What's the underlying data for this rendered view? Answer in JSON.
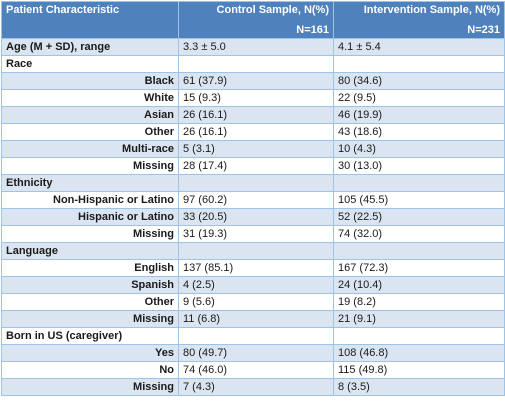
{
  "header": {
    "characteristic": "Patient Characteristic",
    "control_label": "Control Sample, N(%)",
    "control_n": "N=161",
    "intervention_label": "Intervention Sample, N(%)",
    "intervention_n": "N=231"
  },
  "rows": [
    {
      "label": "Age (M + SD), range",
      "type": "category",
      "control": "3.3 ± 5.0",
      "intervention": "4.1 ± 5.4"
    },
    {
      "label": "Race",
      "type": "category",
      "control": "",
      "intervention": ""
    },
    {
      "label": "Black",
      "type": "sub",
      "control": "61 (37.9)",
      "intervention": "80 (34.6)"
    },
    {
      "label": "White",
      "type": "sub",
      "control": "15 (9.3)",
      "intervention": "22 (9.5)"
    },
    {
      "label": "Asian",
      "type": "sub",
      "control": "26 (16.1)",
      "intervention": "46 (19.9)"
    },
    {
      "label": "Other",
      "type": "sub",
      "control": "26 (16.1)",
      "intervention": "43 (18.6)"
    },
    {
      "label": "Multi-race",
      "type": "sub",
      "control": "5 (3.1)",
      "intervention": "10 (4.3)"
    },
    {
      "label": "Missing",
      "type": "sub",
      "control": "28 (17.4)",
      "intervention": "30 (13.0)"
    },
    {
      "label": "Ethnicity",
      "type": "category",
      "control": "",
      "intervention": ""
    },
    {
      "label": "Non-Hispanic or Latino",
      "type": "sub",
      "control": "97 (60.2)",
      "intervention": "105 (45.5)"
    },
    {
      "label": "Hispanic or Latino",
      "type": "sub",
      "control": "33 (20.5)",
      "intervention": "52 (22.5)"
    },
    {
      "label": "Missing",
      "type": "sub",
      "control": "31 (19.3)",
      "intervention": "74 (32.0)"
    },
    {
      "label": "Language",
      "type": "category",
      "control": "",
      "intervention": ""
    },
    {
      "label": "English",
      "type": "sub",
      "control": "137 (85.1)",
      "intervention": "167 (72.3)"
    },
    {
      "label": "Spanish",
      "type": "sub",
      "control": "4 (2.5)",
      "intervention": "24 (10.4)"
    },
    {
      "label": "Other",
      "type": "sub",
      "control": "9 (5.6)",
      "intervention": "19 (8.2)"
    },
    {
      "label": "Missing",
      "type": "sub",
      "control": "11 (6.8)",
      "intervention": "21 (9.1)"
    },
    {
      "label": "Born in US (caregiver)",
      "type": "category",
      "control": "",
      "intervention": ""
    },
    {
      "label": "Yes",
      "type": "sub",
      "control": "80 (49.7)",
      "intervention": "108 (46.8)"
    },
    {
      "label": "No",
      "type": "sub",
      "control": "74 (46.0)",
      "intervention": "115 (49.8)"
    },
    {
      "label": "Missing",
      "type": "sub",
      "control": "7 (4.3)",
      "intervention": "8 (3.5)"
    }
  ]
}
